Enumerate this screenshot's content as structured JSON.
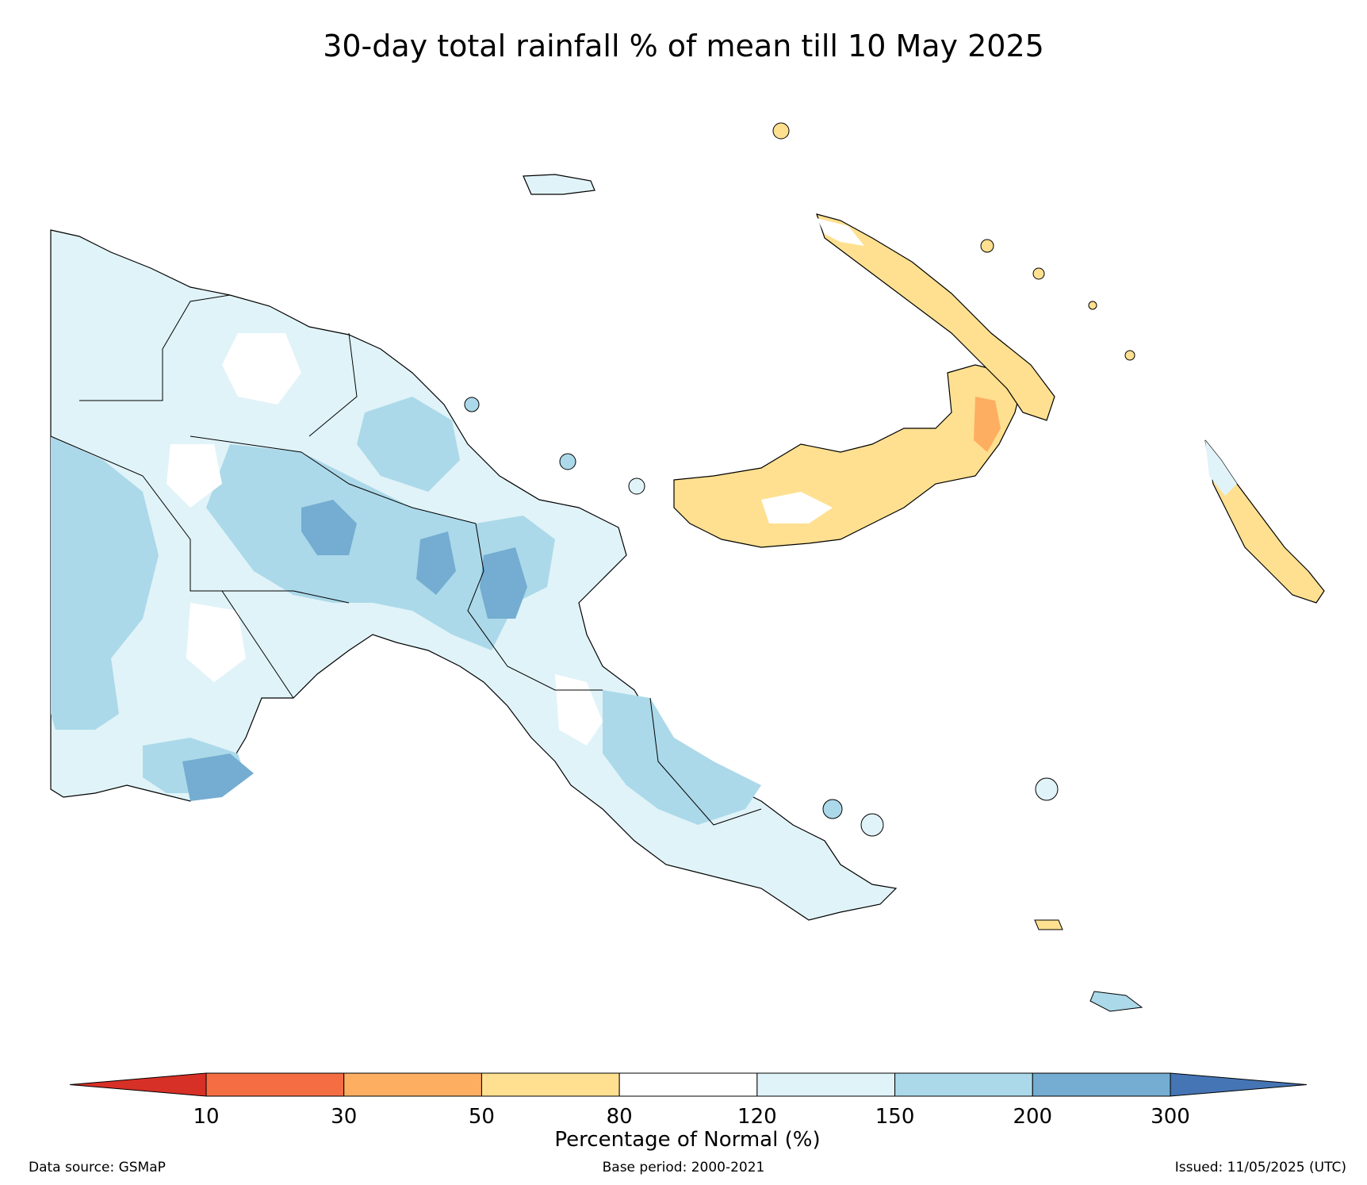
{
  "title": "30-day total rainfall % of mean till 10 May 2025",
  "legend": {
    "label": "Percentage of Normal (%)",
    "ticks": [
      "10",
      "30",
      "50",
      "80",
      "120",
      "150",
      "200",
      "300"
    ],
    "bins": [
      {
        "range": "<10",
        "color": "#d73027"
      },
      {
        "range": "10-30",
        "color": "#f46d43"
      },
      {
        "range": "30-50",
        "color": "#fdae61"
      },
      {
        "range": "50-80",
        "color": "#fee090"
      },
      {
        "range": "80-120",
        "color": "#ffffff"
      },
      {
        "range": "120-150",
        "color": "#e0f3f8"
      },
      {
        "range": "150-200",
        "color": "#abd9e9"
      },
      {
        "range": "200-300",
        "color": "#74add1"
      },
      {
        "range": ">300",
        "color": "#4575b4"
      }
    ]
  },
  "footer": {
    "source": "Data source: GSMaP",
    "base_period": "Base period: 2000-2021",
    "issued": "Issued: 11/05/2025 (UTC)"
  }
}
